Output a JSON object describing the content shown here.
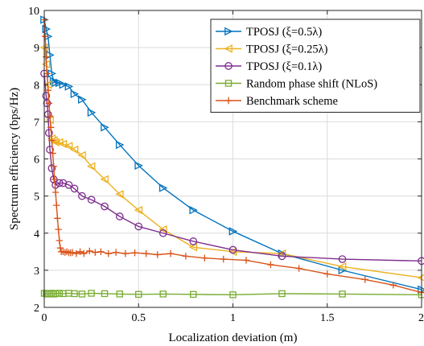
{
  "chart_data": {
    "type": "line",
    "title": "",
    "xlabel": "Localization deviation (m)",
    "ylabel": "Spectrum efficiency (bps/Hz)",
    "xlim": [
      0,
      2
    ],
    "ylim": [
      2,
      10
    ],
    "xticks": [
      0,
      0.5,
      1,
      1.5,
      2
    ],
    "xtick_labels": [
      "0",
      "0.5",
      "1",
      "1.5",
      "2"
    ],
    "yticks": [
      2,
      3,
      4,
      5,
      6,
      7,
      8,
      9,
      10
    ],
    "ytick_labels": [
      "2",
      "3",
      "4",
      "5",
      "6",
      "7",
      "8",
      "9",
      "10"
    ],
    "grid": true,
    "legend_position": "top-right",
    "series": [
      {
        "name": "TPOSJ (ξ=0.5λ)",
        "color": "#0072BD",
        "marker": "triangle-right",
        "x": [
          0,
          0.01,
          0.02,
          0.03,
          0.04,
          0.05,
          0.06,
          0.08,
          0.1,
          0.13,
          0.16,
          0.2,
          0.25,
          0.32,
          0.4,
          0.5,
          0.63,
          0.79,
          1.0,
          1.26,
          1.58,
          2.0
        ],
        "y": [
          9.75,
          9.5,
          9.3,
          8.8,
          8.3,
          8.1,
          8.05,
          8.05,
          8.0,
          7.95,
          7.75,
          7.6,
          7.25,
          6.85,
          6.38,
          5.82,
          5.22,
          4.62,
          4.05,
          3.45,
          3.0,
          2.48
        ]
      },
      {
        "name": "TPOSJ (ξ=0.25λ)",
        "color": "#EDB120",
        "marker": "triangle-left",
        "x": [
          0,
          0.01,
          0.02,
          0.03,
          0.04,
          0.05,
          0.06,
          0.08,
          0.1,
          0.13,
          0.16,
          0.2,
          0.25,
          0.32,
          0.4,
          0.5,
          0.63,
          0.79,
          1.0,
          1.26,
          1.58,
          2.0
        ],
        "y": [
          9.0,
          8.55,
          8.0,
          7.05,
          6.55,
          6.5,
          6.45,
          6.45,
          6.4,
          6.35,
          6.25,
          6.1,
          5.8,
          5.45,
          5.05,
          4.62,
          4.1,
          3.62,
          3.5,
          3.45,
          3.1,
          2.8
        ]
      },
      {
        "name": "TPOSJ (ξ=0.1λ)",
        "color": "#7E2F8E",
        "marker": "circle",
        "x": [
          0,
          0.01,
          0.015,
          0.02,
          0.025,
          0.03,
          0.04,
          0.05,
          0.06,
          0.08,
          0.1,
          0.13,
          0.16,
          0.2,
          0.25,
          0.32,
          0.4,
          0.5,
          0.63,
          0.79,
          1.0,
          1.26,
          1.58,
          2.0
        ],
        "y": [
          8.3,
          7.7,
          7.5,
          7.2,
          6.7,
          6.25,
          5.75,
          5.45,
          5.3,
          5.35,
          5.35,
          5.3,
          5.2,
          5.0,
          4.9,
          4.72,
          4.45,
          4.18,
          4.0,
          3.78,
          3.55,
          3.38,
          3.3,
          3.25
        ]
      },
      {
        "name": "Random phase shift (NLoS)",
        "color": "#77AC30",
        "marker": "square",
        "x": [
          0,
          0.01,
          0.02,
          0.03,
          0.04,
          0.05,
          0.06,
          0.08,
          0.1,
          0.13,
          0.16,
          0.2,
          0.25,
          0.32,
          0.4,
          0.5,
          0.63,
          0.79,
          1.0,
          1.26,
          1.58,
          2.0
        ],
        "y": [
          2.38,
          2.37,
          2.36,
          2.37,
          2.38,
          2.36,
          2.37,
          2.38,
          2.37,
          2.38,
          2.37,
          2.36,
          2.38,
          2.37,
          2.36,
          2.35,
          2.36,
          2.35,
          2.34,
          2.37,
          2.36,
          2.34
        ]
      },
      {
        "name": "Benchmark scheme",
        "color": "#D95319",
        "marker": "plus",
        "x": [
          0,
          0.005,
          0.01,
          0.015,
          0.02,
          0.025,
          0.03,
          0.035,
          0.04,
          0.045,
          0.05,
          0.055,
          0.06,
          0.065,
          0.07,
          0.075,
          0.08,
          0.085,
          0.09,
          0.1,
          0.11,
          0.12,
          0.13,
          0.14,
          0.15,
          0.17,
          0.19,
          0.21,
          0.24,
          0.27,
          0.3,
          0.34,
          0.38,
          0.43,
          0.48,
          0.54,
          0.6,
          0.67,
          0.75,
          0.85,
          0.95,
          1.07,
          1.2,
          1.35,
          1.5,
          1.7,
          1.85,
          2.0
        ],
        "y": [
          9.75,
          9.3,
          8.75,
          8.3,
          7.85,
          7.5,
          7.15,
          6.85,
          6.5,
          6.15,
          5.8,
          5.45,
          5.1,
          4.75,
          4.4,
          4.1,
          3.8,
          3.6,
          3.5,
          3.5,
          3.48,
          3.5,
          3.47,
          3.47,
          3.48,
          3.45,
          3.5,
          3.45,
          3.52,
          3.48,
          3.5,
          3.45,
          3.48,
          3.45,
          3.47,
          3.45,
          3.42,
          3.45,
          3.38,
          3.33,
          3.3,
          3.27,
          3.15,
          3.05,
          2.9,
          2.75,
          2.6,
          2.4
        ]
      }
    ]
  }
}
